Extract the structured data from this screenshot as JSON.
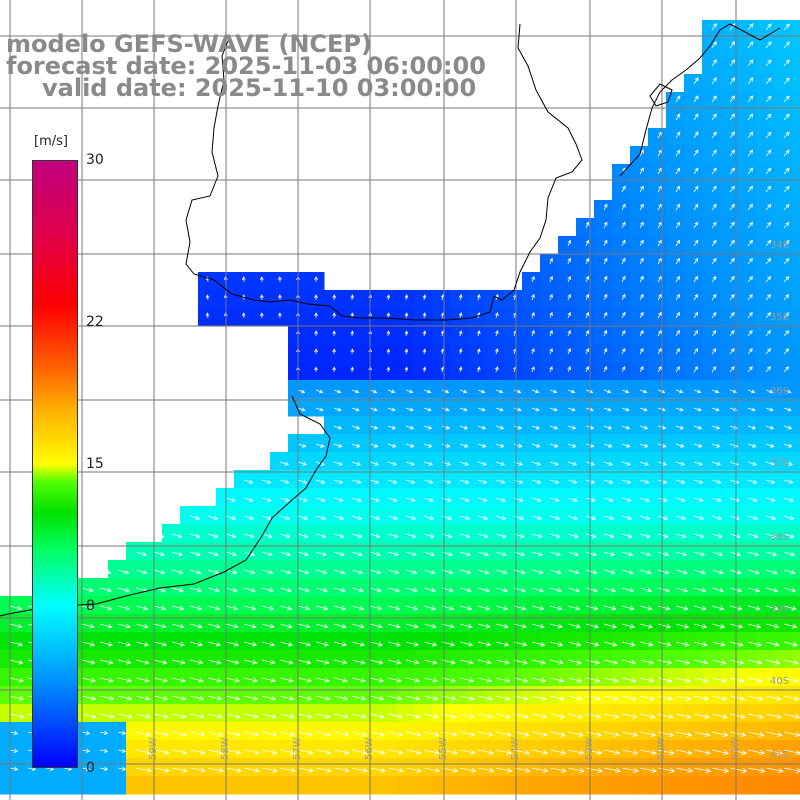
{
  "title": {
    "line1": "modelo GEFS-WAVE (NCEP)",
    "line2": "forecast date: 2025-11-03 06:00:00",
    "line3": "valid date: 2025-11-10 03:00:00"
  },
  "colorbar": {
    "unit": "[m/s]",
    "min": 0,
    "max": 30,
    "ticks": [
      "30",
      "22",
      "15",
      "8",
      "0"
    ],
    "tick_values": [
      30,
      22,
      15,
      8,
      0
    ],
    "colors": [
      "#0000ff",
      "#00ffff",
      "#00ff00",
      "#ffff00",
      "#ff0000",
      "#c0007f"
    ]
  },
  "grid": {
    "lat_labels": [
      "34S",
      "35S",
      "36S",
      "37S",
      "38S",
      "39S",
      "40S",
      "41S"
    ],
    "lon_labels": [
      "59W",
      "58W",
      "57W",
      "56W",
      "55W",
      "54W",
      "53W",
      "52W",
      "51W"
    ]
  },
  "colors": {
    "land": "#ffffff",
    "coastline": "#000000",
    "gridline": "#808080",
    "vector": "#ffffff"
  }
}
